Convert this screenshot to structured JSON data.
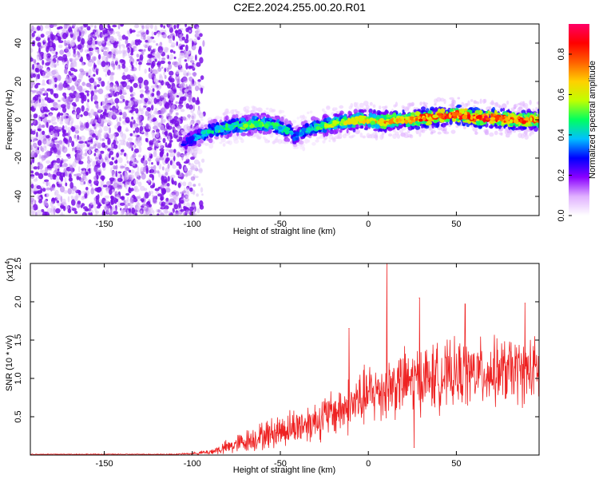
{
  "title": "C2E2.2024.255.00.20.R01",
  "chart_data": [
    {
      "type": "heatmap",
      "xlabel": "Height of straight line (km)",
      "ylabel": "Frequency (Hz)",
      "xlim": [
        -192,
        97
      ],
      "ylim": [
        -50,
        50
      ],
      "xticks": [
        "-150",
        "-100",
        "-50",
        "0",
        "50"
      ],
      "xtick_values": [
        -150,
        -100,
        -50,
        0,
        50
      ],
      "yticks": [
        "-40",
        "-20",
        "0",
        "20",
        "40"
      ],
      "ytick_values": [
        -40,
        -20,
        0,
        20,
        40
      ],
      "colorbar": {
        "label": "Normalized spectral amplitude",
        "range": [
          0,
          0.95
        ],
        "ticks": [
          "0.0",
          "0.2",
          "0.4",
          "0.6",
          "0.8"
        ],
        "tick_values": [
          0.0,
          0.2,
          0.4,
          0.6,
          0.8
        ],
        "colormap": [
          "#ffffff",
          "#e0b0ff",
          "#8a00ff",
          "#0000ff",
          "#00c0ff",
          "#00ff60",
          "#c0ff00",
          "#ffd000",
          "#ff6000",
          "#ff0000",
          "#ff0066"
        ]
      },
      "noise_region_km": [
        -192,
        -93
      ],
      "signal_track": {
        "x": [
          -105,
          -100,
          -95,
          -90,
          -85,
          -80,
          -75,
          -70,
          -65,
          -60,
          -55,
          -50,
          -45,
          -42,
          -38,
          -34,
          -30,
          -25,
          -20,
          -15,
          -10,
          -5,
          0,
          5,
          10,
          15,
          20,
          25,
          30,
          35,
          40,
          45,
          50,
          55,
          60,
          65,
          70,
          75,
          80,
          85,
          90,
          95
        ],
        "freq": [
          -12,
          -10,
          -8,
          -6,
          -5,
          -4,
          -3,
          -3,
          -2,
          -2,
          -3,
          -4,
          -6,
          -9,
          -7,
          -5,
          -4,
          -3,
          -2,
          -1,
          -1,
          0,
          0,
          -1,
          -1,
          0,
          0,
          0,
          1,
          1,
          2,
          2,
          3,
          2,
          1,
          1,
          1,
          1,
          0,
          0,
          0,
          0
        ],
        "amplitude": [
          0.3,
          0.35,
          0.4,
          0.45,
          0.5,
          0.5,
          0.5,
          0.55,
          0.55,
          0.55,
          0.5,
          0.5,
          0.45,
          0.35,
          0.4,
          0.45,
          0.5,
          0.55,
          0.6,
          0.6,
          0.65,
          0.65,
          0.7,
          0.7,
          0.75,
          0.75,
          0.8,
          0.8,
          0.85,
          0.85,
          0.85,
          0.9,
          0.9,
          0.9,
          0.9,
          0.9,
          0.9,
          0.85,
          0.85,
          0.85,
          0.8,
          0.8
        ]
      }
    },
    {
      "type": "line",
      "xlabel": "Height of straight line (km)",
      "ylabel": "SNR (10 * v/v)",
      "multiplier_label": "(x10",
      "multiplier_exp": "4",
      "color": "#ee2222",
      "xlim": [
        -192,
        97
      ],
      "ylim": [
        0,
        2.5
      ],
      "xticks": [
        "-150",
        "-100",
        "-50",
        "0",
        "50"
      ],
      "xtick_values": [
        -150,
        -100,
        -50,
        0,
        50
      ],
      "yticks": [
        "0.5",
        "1.0",
        "1.5",
        "2.0",
        "2.5"
      ],
      "ytick_values": [
        0.5,
        1.0,
        1.5,
        2.0,
        2.5
      ],
      "envelope": {
        "x": [
          -192,
          -110,
          -100,
          -90,
          -80,
          -70,
          -60,
          -50,
          -40,
          -30,
          -20,
          -10,
          0,
          10,
          20,
          30,
          40,
          50,
          60,
          70,
          80,
          90,
          97
        ],
        "mean": [
          0.01,
          0.01,
          0.02,
          0.04,
          0.1,
          0.18,
          0.25,
          0.32,
          0.38,
          0.45,
          0.55,
          0.65,
          0.78,
          0.88,
          0.95,
          1.0,
          1.02,
          1.05,
          1.07,
          1.08,
          1.1,
          1.1,
          1.1
        ],
        "spread": [
          0.005,
          0.005,
          0.01,
          0.03,
          0.08,
          0.12,
          0.15,
          0.18,
          0.2,
          0.22,
          0.25,
          0.3,
          0.32,
          0.35,
          0.35,
          0.35,
          0.35,
          0.35,
          0.35,
          0.35,
          0.35,
          0.35,
          0.35
        ]
      },
      "peaks": [
        {
          "x": 10.5,
          "y": 2.5
        },
        {
          "x": 29,
          "y": 2.05
        },
        {
          "x": -11,
          "y": 1.65
        },
        {
          "x": 55,
          "y": 1.97
        },
        {
          "x": 89,
          "y": 1.98
        },
        {
          "x": 26,
          "y": 0.1
        }
      ]
    }
  ]
}
